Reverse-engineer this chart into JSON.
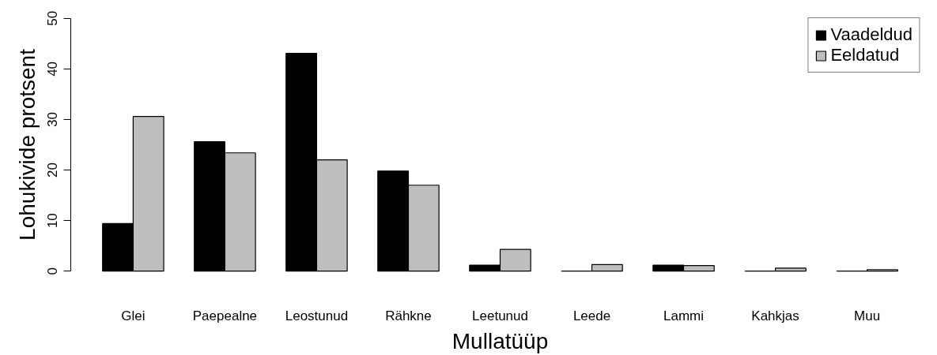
{
  "chart_data": {
    "type": "bar",
    "xlabel": "Mullatüüp",
    "ylabel": "Lohukivide protsent",
    "categories": [
      "Glei",
      "Paepealne",
      "Leostunud",
      "Rähkne",
      "Leetunud",
      "Leede",
      "Lammi",
      "Kahkjas",
      "Muu"
    ],
    "series": [
      {
        "name": "Vaadeldud",
        "color": "#000000",
        "values": [
          9.4,
          25.6,
          43.1,
          19.8,
          1.2,
          0,
          1.2,
          0,
          0
        ]
      },
      {
        "name": "Eeldatud",
        "color": "#bebebe",
        "values": [
          30.6,
          23.4,
          22.0,
          17.0,
          4.3,
          1.3,
          1.1,
          0.6,
          0.3
        ]
      }
    ],
    "ylim": [
      0,
      50
    ],
    "yticks": [
      0,
      10,
      20,
      30,
      40,
      50
    ],
    "grid": false,
    "legend": "top right"
  }
}
